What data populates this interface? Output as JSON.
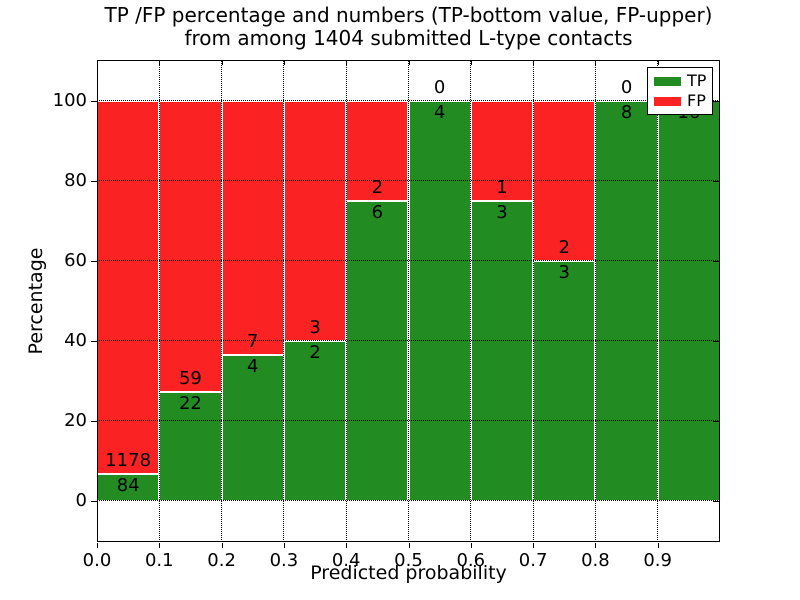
{
  "chart_data": {
    "type": "bar",
    "stacked": true,
    "title_line1": "TP /FP percentage and numbers (TP-bottom value, FP-upper)",
    "title_line2": "from among 1404 submitted L-type contacts",
    "xlabel": "Predicted probability",
    "ylabel": "Percentage",
    "xlim": [
      0.0,
      1.0
    ],
    "ylim": [
      -10,
      110
    ],
    "xticks": [
      0.0,
      0.1,
      0.2,
      0.3,
      0.4,
      0.5,
      0.6,
      0.7,
      0.8,
      0.9
    ],
    "yticks": [
      0,
      20,
      40,
      60,
      80,
      100
    ],
    "grid": "dotted",
    "total_contacts": 1404,
    "legend": {
      "position": "upper right",
      "entries": [
        {
          "label": "TP",
          "color": "#228b22"
        },
        {
          "label": "FP",
          "color": "#fa2222"
        }
      ]
    },
    "bins": [
      {
        "range": [
          0.0,
          0.1
        ],
        "tp": 84,
        "fp": 1178,
        "tp_percent": 6.66,
        "fp_percent": 93.34
      },
      {
        "range": [
          0.1,
          0.2
        ],
        "tp": 22,
        "fp": 59,
        "tp_percent": 27.16,
        "fp_percent": 72.84
      },
      {
        "range": [
          0.2,
          0.3
        ],
        "tp": 4,
        "fp": 7,
        "tp_percent": 36.36,
        "fp_percent": 63.64
      },
      {
        "range": [
          0.3,
          0.4
        ],
        "tp": 2,
        "fp": 3,
        "tp_percent": 40.0,
        "fp_percent": 60.0
      },
      {
        "range": [
          0.4,
          0.5
        ],
        "tp": 6,
        "fp": 2,
        "tp_percent": 75.0,
        "fp_percent": 25.0
      },
      {
        "range": [
          0.5,
          0.6
        ],
        "tp": 4,
        "fp": 0,
        "tp_percent": 100.0,
        "fp_percent": 0.0
      },
      {
        "range": [
          0.6,
          0.7
        ],
        "tp": 3,
        "fp": 1,
        "tp_percent": 75.0,
        "fp_percent": 25.0
      },
      {
        "range": [
          0.7,
          0.8
        ],
        "tp": 3,
        "fp": 2,
        "tp_percent": 60.0,
        "fp_percent": 40.0
      },
      {
        "range": [
          0.8,
          0.9
        ],
        "tp": 8,
        "fp": 0,
        "tp_percent": 100.0,
        "fp_percent": 0.0
      },
      {
        "range": [
          0.9,
          1.0
        ],
        "tp": 16,
        "fp": 0,
        "tp_percent": 100.0,
        "fp_percent": 0.0
      }
    ]
  }
}
